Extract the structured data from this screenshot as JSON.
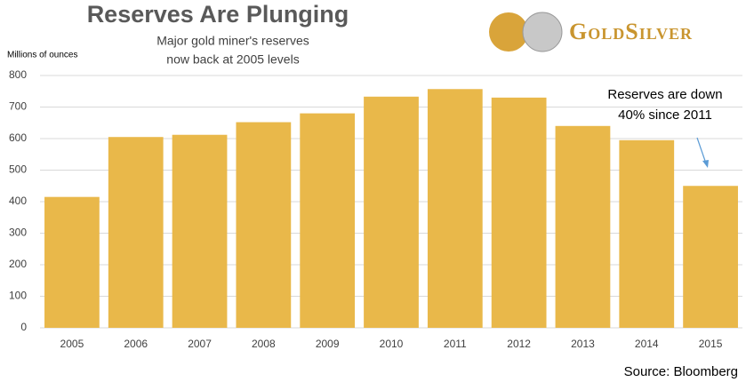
{
  "chart_data": {
    "type": "bar",
    "title": "Reserves Are Plunging",
    "subtitle": [
      "Major gold miner's reserves",
      "now back at 2005 levels"
    ],
    "y_label": "Millions of ounces",
    "logo": "GoldSilver",
    "annotation": [
      "Reserves are down",
      "40% since 2011"
    ],
    "source": "Source: Bloomberg",
    "categories": [
      "2005",
      "2006",
      "2007",
      "2008",
      "2009",
      "2010",
      "2011",
      "2012",
      "2013",
      "2014",
      "2015"
    ],
    "values": [
      415,
      605,
      612,
      652,
      680,
      733,
      757,
      730,
      640,
      595,
      450
    ],
    "color": "#e9b84a",
    "ylim": [
      0,
      800
    ],
    "yticks": [
      0,
      100,
      200,
      300,
      400,
      500,
      600,
      700,
      800
    ],
    "grid": true
  }
}
